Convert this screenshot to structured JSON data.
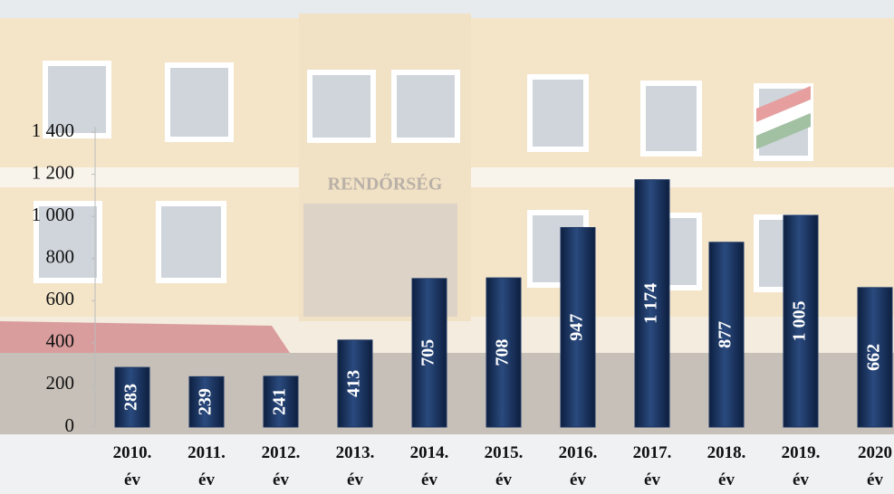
{
  "chart_data": {
    "type": "bar",
    "categories": [
      "2010. év",
      "2011. év",
      "2012. év",
      "2013. év",
      "2014. év",
      "2015. év",
      "2016. év",
      "2017. év",
      "2018. év",
      "2019. év",
      "2020 év"
    ],
    "values": [
      283,
      239,
      241,
      413,
      705,
      708,
      947,
      1174,
      877,
      1005,
      662
    ],
    "value_labels": [
      "283",
      "239",
      "241",
      "413",
      "705",
      "708",
      "947",
      "1 174",
      "877",
      "1 005",
      "662"
    ],
    "color": "#1f3864",
    "ylim": [
      0,
      1400
    ],
    "yticks": [
      0,
      200,
      400,
      600,
      800,
      {
        "value": 1000,
        "label": "1 000"
      },
      {
        "value": 1200,
        "label": "1 200"
      },
      {
        "value": 1400,
        "label": "1 400"
      }
    ]
  }
}
